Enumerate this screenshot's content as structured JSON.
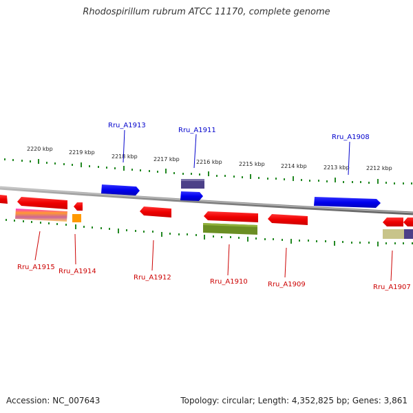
{
  "title": "Rhodospirillum rubrum ATCC 11170, complete genome",
  "footer": {
    "accession": "Accession: NC_007643",
    "summary": "Topology: circular; Length: 4,352,825 bp; Genes: 3,861"
  },
  "colors": {
    "backbone": "#888888",
    "ticks": "#22aa22",
    "forward_gene": "#0000ee",
    "reverse_gene": "#ee0000",
    "forward_label": "#0000cc",
    "reverse_label": "#cc0000"
  },
  "scale_ticks": [
    "2220 kbp",
    "2219 kbp",
    "2218 kbp",
    "2217 kbp",
    "2216 kbp",
    "2215 kbp",
    "2214 kbp",
    "2213 kbp",
    "2212 kbp"
  ],
  "genes_forward": [
    "Rru_A1913",
    "Rru_A1911",
    "Rru_A1908"
  ],
  "genes_reverse": [
    "Rru_A1915",
    "Rru_A1914",
    "Rru_A1912",
    "Rru_A1910",
    "Rru_A1909",
    "Rru_A1907"
  ]
}
